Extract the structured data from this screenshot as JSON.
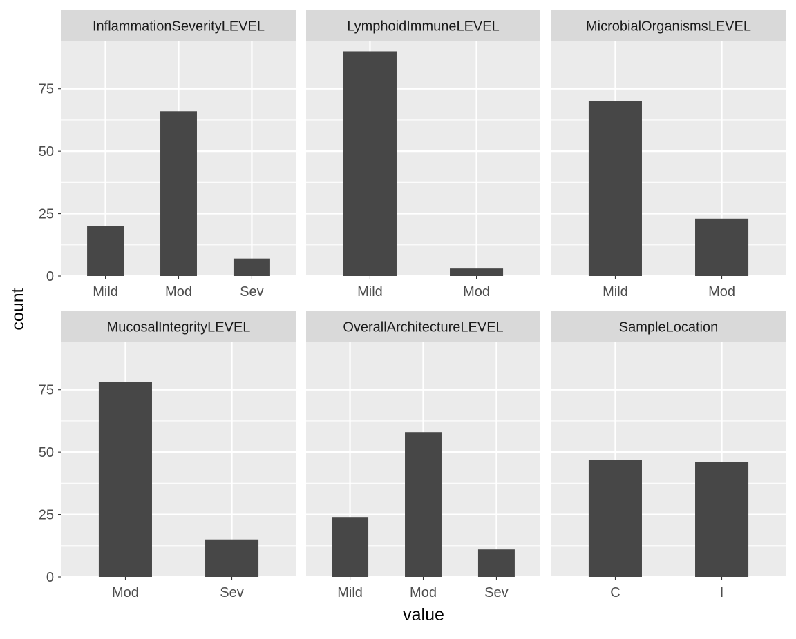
{
  "chart_data": {
    "type": "bar",
    "xlabel": "value",
    "ylabel": "count",
    "ylim": [
      0,
      94
    ],
    "yticks": [
      0,
      25,
      50,
      75
    ],
    "colors": {
      "bar": "#474747",
      "panel": "#ebebeb",
      "strip": "#d9d9d9",
      "grid": "#ffffff",
      "text": "#4d4d4d",
      "title_text": "#1a1a1a"
    },
    "panels": [
      {
        "title": "InflammationSeverityLEVEL",
        "categories": [
          "Mild",
          "Mod",
          "Sev"
        ],
        "values": [
          20,
          66,
          7
        ]
      },
      {
        "title": "LymphoidImmuneLEVEL",
        "categories": [
          "Mild",
          "Mod"
        ],
        "values": [
          90,
          3
        ]
      },
      {
        "title": "MicrobialOrganismsLEVEL",
        "categories": [
          "Mild",
          "Mod"
        ],
        "values": [
          70,
          23
        ]
      },
      {
        "title": "MucosalIntegrityLEVEL",
        "categories": [
          "Mod",
          "Sev"
        ],
        "values": [
          78,
          15
        ]
      },
      {
        "title": "OverallArchitectureLEVEL",
        "categories": [
          "Mild",
          "Mod",
          "Sev"
        ],
        "values": [
          24,
          58,
          11
        ]
      },
      {
        "title": "SampleLocation",
        "categories": [
          "C",
          "I"
        ],
        "values": [
          47,
          46
        ]
      }
    ]
  }
}
